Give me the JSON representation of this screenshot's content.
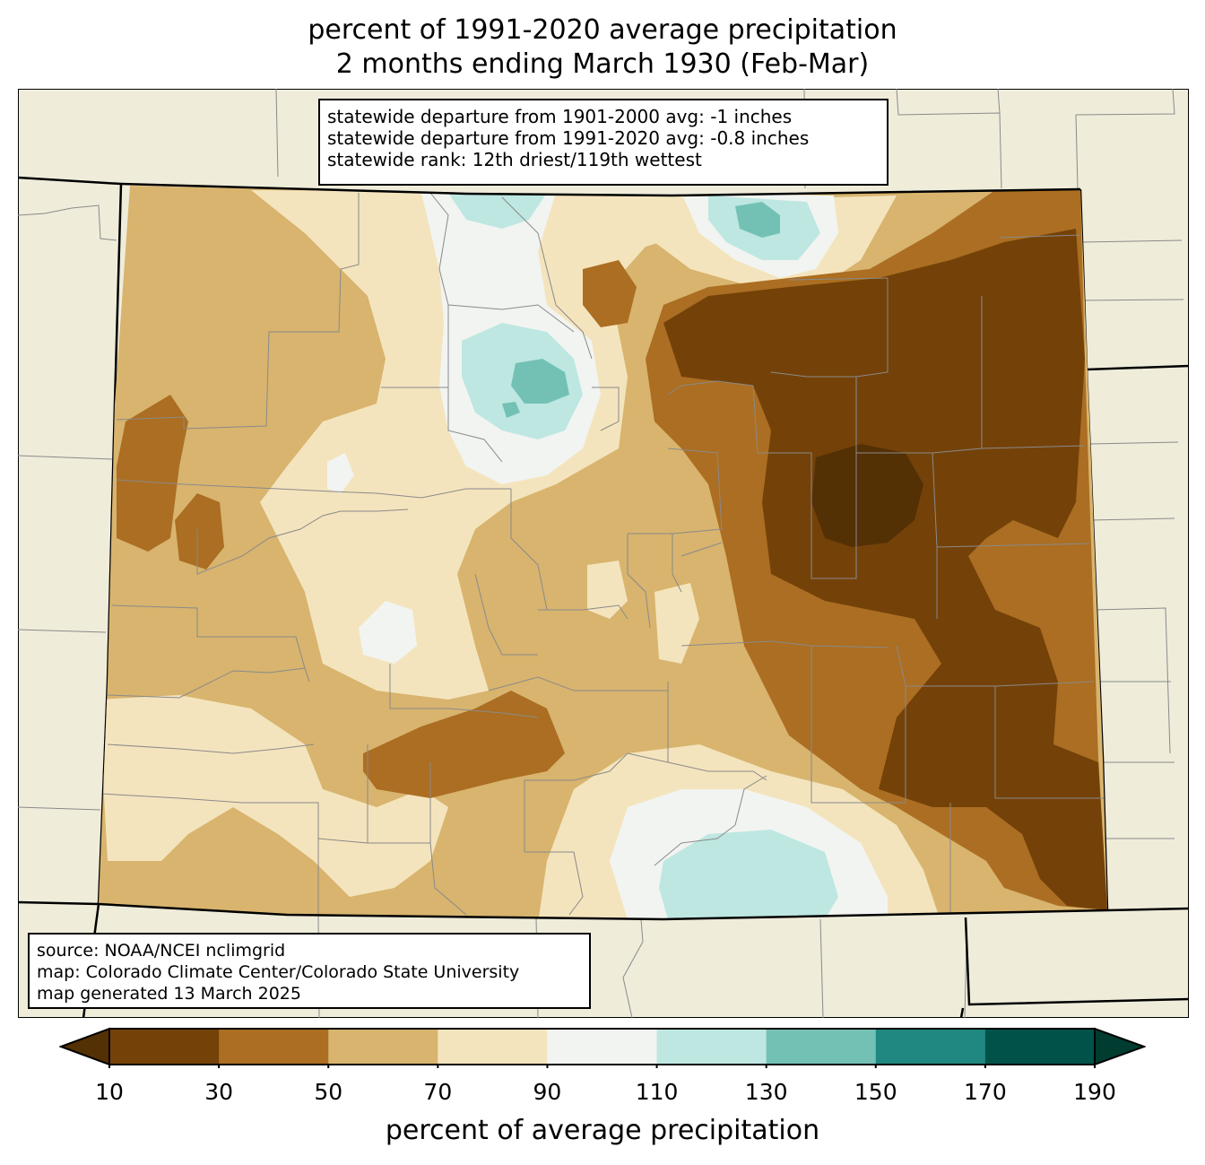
{
  "title": {
    "line1": "percent of 1991-2020 average precipitation",
    "line2": "2 months ending March 1930 (Feb-Mar)"
  },
  "stats_box": {
    "lines": [
      "statewide departure from 1901-2000 avg: -1 inches",
      "statewide departure from 1991-2020 avg: -0.8 inches",
      "statewide rank: 12th driest/119th wettest"
    ]
  },
  "source_box": {
    "lines": [
      "source: NOAA/NCEI nclimgrid",
      "map: Colorado Climate Center/Colorado State University",
      "map generated 13 March 2025"
    ]
  },
  "colorbar": {
    "label": "percent of average precipitation",
    "ticks": [
      "10",
      "30",
      "50",
      "70",
      "90",
      "110",
      "130",
      "150",
      "170",
      "190"
    ],
    "under_color": "#543005",
    "over_color": "#003c30",
    "colors": [
      "#744208",
      "#ab6e22",
      "#d8b46e",
      "#f4e4bd",
      "#f2f4f1",
      "#bee7e1",
      "#73c1b5",
      "#208880",
      "#01534a"
    ]
  },
  "map_colors": {
    "background": "#efecda",
    "pct_10_30": "#744208",
    "pct_30_50": "#ab6e22",
    "pct_50_70": "#d8b46e",
    "pct_70_90": "#f4e4bd",
    "pct_90_110": "#f2f4f1",
    "pct_110_130": "#bee7e1",
    "pct_130_150": "#73c1b5",
    "pct_under_10": "#543005"
  }
}
